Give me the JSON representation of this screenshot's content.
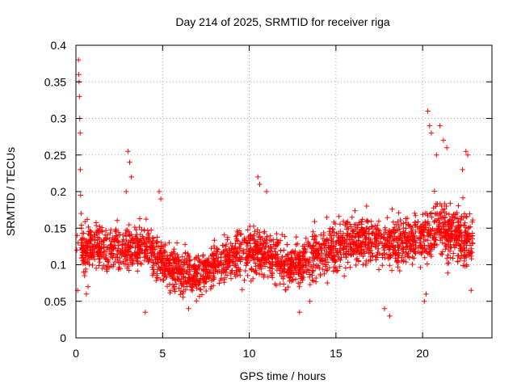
{
  "chart_data": {
    "type": "scatter",
    "title": "Day 214 of 2025, SRMTID for receiver riga",
    "xlabel": "GPS time / hours",
    "ylabel": "SRMTID / TECUs",
    "xlim": [
      0,
      24
    ],
    "ylim": [
      0,
      0.4
    ],
    "xticks": [
      0,
      5,
      10,
      15,
      20
    ],
    "xtick_labels": [
      "0",
      "5",
      "10",
      "15",
      "20"
    ],
    "yticks": [
      0,
      0.05,
      0.1,
      0.15,
      0.2,
      0.25,
      0.3,
      0.35,
      0.4
    ],
    "ytick_labels": [
      "0",
      "0.05",
      "0.1",
      "0.15",
      "0.2",
      "0.25",
      "0.3",
      "0.35",
      "0.4"
    ],
    "grid": true,
    "marker": "+",
    "series": [
      {
        "name": "SRMTID",
        "color": "#ff0000",
        "points": [
          [
            0.05,
            0.12
          ],
          [
            0.08,
            0.14
          ],
          [
            0.1,
            0.065
          ],
          [
            0.12,
            0.13
          ],
          [
            0.15,
            0.38
          ],
          [
            0.17,
            0.36
          ],
          [
            0.18,
            0.35
          ],
          [
            0.2,
            0.33
          ],
          [
            0.22,
            0.3
          ],
          [
            0.24,
            0.28
          ],
          [
            0.25,
            0.23
          ],
          [
            0.27,
            0.195
          ],
          [
            0.3,
            0.17
          ],
          [
            0.32,
            0.15
          ],
          [
            0.35,
            0.13
          ],
          [
            0.4,
            0.11
          ],
          [
            0.45,
            0.09
          ],
          [
            0.5,
            0.085
          ],
          [
            0.6,
            0.06
          ],
          [
            0.7,
            0.07
          ],
          [
            3.0,
            0.255
          ],
          [
            3.1,
            0.24
          ],
          [
            3.2,
            0.22
          ],
          [
            2.9,
            0.2
          ],
          [
            4.0,
            0.035
          ],
          [
            4.8,
            0.2
          ],
          [
            4.9,
            0.19
          ],
          [
            10.5,
            0.22
          ],
          [
            10.6,
            0.21
          ],
          [
            11.0,
            0.2
          ],
          [
            18.1,
            0.03
          ],
          [
            17.8,
            0.04
          ],
          [
            20.3,
            0.31
          ],
          [
            20.4,
            0.29
          ],
          [
            20.5,
            0.28
          ],
          [
            20.8,
            0.25
          ],
          [
            21.0,
            0.29
          ],
          [
            21.2,
            0.27
          ],
          [
            21.4,
            0.26
          ],
          [
            22.5,
            0.255
          ],
          [
            22.6,
            0.25
          ],
          [
            22.3,
            0.23
          ],
          [
            20.1,
            0.05
          ],
          [
            20.2,
            0.06
          ],
          [
            22.8,
            0.065
          ],
          [
            12.9,
            0.035
          ],
          [
            13.5,
            0.05
          ],
          [
            6.5,
            0.04
          ]
        ],
        "density_profile": [
          [
            0,
            0.125,
            0.11
          ],
          [
            1,
            0.125,
            0.12
          ],
          [
            2,
            0.12,
            0.12
          ],
          [
            3,
            0.125,
            0.12
          ],
          [
            4,
            0.125,
            0.12
          ],
          [
            5,
            0.105,
            0.12
          ],
          [
            6,
            0.09,
            0.11
          ],
          [
            7,
            0.085,
            0.11
          ],
          [
            8,
            0.1,
            0.12
          ],
          [
            9,
            0.11,
            0.12
          ],
          [
            10,
            0.12,
            0.13
          ],
          [
            11,
            0.115,
            0.12
          ],
          [
            12,
            0.1,
            0.12
          ],
          [
            13,
            0.1,
            0.12
          ],
          [
            14,
            0.12,
            0.13
          ],
          [
            15,
            0.125,
            0.13
          ],
          [
            16,
            0.135,
            0.13
          ],
          [
            17,
            0.135,
            0.13
          ],
          [
            18,
            0.13,
            0.13
          ],
          [
            19,
            0.13,
            0.12
          ],
          [
            20,
            0.14,
            0.13
          ],
          [
            21,
            0.15,
            0.15
          ],
          [
            22,
            0.14,
            0.15
          ],
          [
            23,
            0.13,
            0.15
          ]
        ]
      }
    ]
  }
}
